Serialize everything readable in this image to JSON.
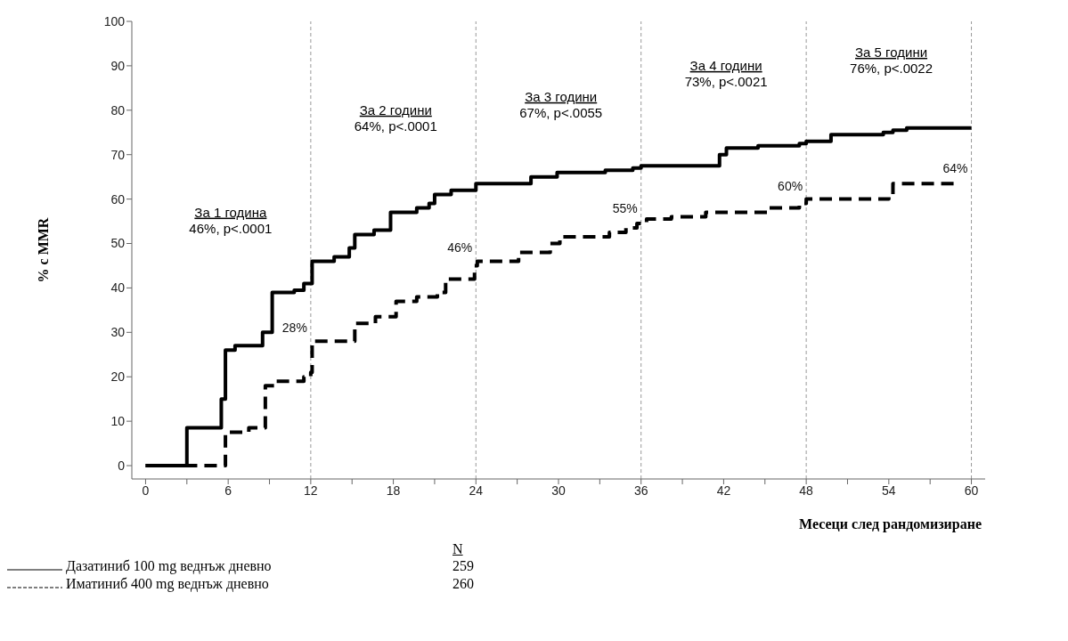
{
  "chart_data": {
    "type": "step",
    "xlabel": "Месеци след рандомизиране",
    "ylabel": "% с MMR",
    "xlim": [
      -1,
      61
    ],
    "ylim": [
      -3,
      100
    ],
    "xticks": [
      0,
      {
        "value": 3,
        "label": null
      },
      6,
      {
        "value": 9,
        "label": null
      },
      12,
      {
        "value": 15,
        "label": null
      },
      18,
      {
        "value": 21,
        "label": null
      },
      24,
      {
        "value": 27,
        "label": null
      },
      30,
      {
        "value": 33,
        "label": null
      },
      36,
      {
        "value": 39,
        "label": null
      },
      42,
      {
        "value": 45,
        "label": null
      },
      48,
      {
        "value": 51,
        "label": null
      },
      54,
      {
        "value": 57,
        "label": null
      },
      60
    ],
    "yticks": [
      0,
      10,
      20,
      30,
      40,
      50,
      60,
      70,
      80,
      90,
      100
    ],
    "grid": false,
    "marker": "none",
    "legend": "bottom left",
    "legend_title": "N",
    "series": [
      {
        "name": "Дазатиниб 100 mg веднъж дневно",
        "color": "#000000",
        "line_style": "solid",
        "x": [
          0,
          3,
          5.5,
          5.8,
          6.5,
          8.5,
          9.2,
          10.8,
          11.5,
          12.1,
          13.7,
          14.8,
          15.2,
          16.6,
          17.8,
          19.7,
          20.6,
          21,
          22.2,
          24,
          28,
          29.9,
          33.4,
          35.4,
          36,
          41.7,
          42.2,
          44.5,
          47.5,
          48,
          49.8,
          53.6,
          54.3,
          55.3,
          60
        ],
        "values": [
          0,
          8.5,
          15,
          26,
          27,
          30,
          39,
          39.5,
          41,
          46,
          47,
          49,
          52,
          53,
          57,
          58,
          59,
          61,
          62,
          63.5,
          65,
          66,
          66.5,
          67,
          67.5,
          70,
          71.5,
          72,
          72.5,
          73,
          74.5,
          75,
          75.5,
          76,
          76
        ]
      },
      {
        "name": "Иматиниб 400 mg веднъж дневно",
        "color": "#000000",
        "line_style": "dashed",
        "x": [
          0,
          5.8,
          7.5,
          8.7,
          9.5,
          11.5,
          12,
          12.1,
          15.2,
          16.7,
          18.2,
          19.7,
          21.2,
          21.8,
          23.9,
          24.1,
          27.1,
          29.4,
          30.1,
          33.7,
          34.9,
          35.7,
          36.4,
          38.2,
          40.7,
          45.3,
          47.5,
          48,
          54,
          54.3,
          59
        ],
        "values": [
          0,
          7.5,
          8.5,
          18,
          19,
          20,
          21,
          28,
          32,
          33.5,
          37,
          38,
          39,
          42,
          45,
          46,
          48,
          50,
          51.5,
          52.5,
          53.5,
          54.5,
          55.5,
          56,
          57,
          58,
          59,
          60,
          61,
          63.5,
          63.5
        ]
      }
    ],
    "ref_lines": [
      {
        "axis": "x",
        "value": 12,
        "color": "#999999",
        "line_style": "dashed"
      },
      {
        "axis": "x",
        "value": 24,
        "color": "#999999",
        "line_style": "dashed"
      },
      {
        "axis": "x",
        "value": 36,
        "color": "#999999",
        "line_style": "dashed"
      },
      {
        "axis": "x",
        "value": 48,
        "color": "#999999",
        "line_style": "dashed"
      },
      {
        "axis": "x",
        "value": 60,
        "color": "#999999",
        "line_style": "dashed"
      }
    ],
    "annotations": [
      {
        "text": "За 1 година\n46%, p<.0001",
        "x": 12,
        "y": 56
      },
      {
        "text": "За 2 години\n64%, p<.0001",
        "x": 24,
        "y": 79
      },
      {
        "text": "За 3 години\n67%, p<.0055",
        "x": 36,
        "y": 82
      },
      {
        "text": "За 4 години\n73%, p<.0021",
        "x": 48,
        "y": 89
      },
      {
        "text": "За 5 години\n76%, p<.0022",
        "x": 60,
        "y": 92
      },
      {
        "text": "28%",
        "x": 12,
        "y": 28
      },
      {
        "text": "46%",
        "x": 24,
        "y": 46
      },
      {
        "text": "55%",
        "x": 36,
        "y": 55
      },
      {
        "text": "60%",
        "x": 48,
        "y": 60
      },
      {
        "text": "64%",
        "x": 60,
        "y": 64
      },
      "259",
      "260"
    ]
  }
}
